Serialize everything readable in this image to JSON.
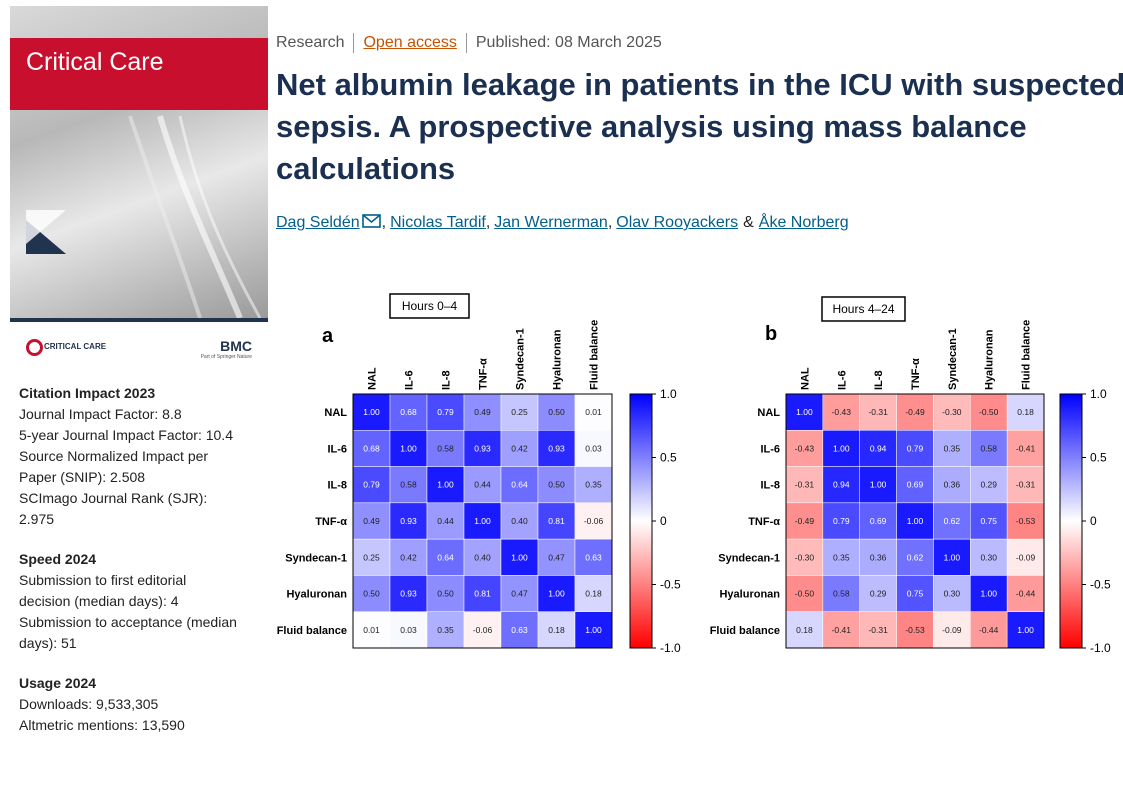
{
  "journal": {
    "name": "Critical Care",
    "logo_text": "CRITICAL CARE",
    "publisher": "BMC",
    "publisher_note": "Part of Springer Nature"
  },
  "metrics": [
    {
      "heading": "Citation Impact 2023",
      "items": [
        "Journal Impact Factor: 8.8",
        "5-year Journal Impact Factor: 10.4",
        "Source Normalized Impact per Paper (SNIP): 2.508",
        "SCImago Journal Rank (SJR): 2.975"
      ]
    },
    {
      "heading": "Speed 2024",
      "items": [
        "Submission to first editorial decision (median days): 4",
        "Submission to acceptance (median days): 51"
      ]
    },
    {
      "heading": "Usage 2024",
      "items": [
        "Downloads: 9,533,305",
        "Altmetric mentions: 13,590"
      ]
    }
  ],
  "article": {
    "type": "Research",
    "access": "Open access",
    "published": "Published: 08 March 2025",
    "title": "Net albumin leakage in patients in the ICU with suspected sepsis. A prospective analysis using mass balance calculations",
    "authors": [
      "Dag Seldén",
      "Nicolas Tardif",
      "Jan Wernerman",
      "Olav Rooyackers",
      "Åke Norberg"
    ],
    "author_separator": ",",
    "last_author_separator": "&"
  },
  "chart_data": [
    {
      "type": "heatmap",
      "panel": "a",
      "title": "Hours 0–4",
      "categories": [
        "NAL",
        "IL-6",
        "IL-8",
        "TNF-α",
        "Syndecan-1",
        "Hyaluronan",
        "Fluid balance"
      ],
      "values": [
        [
          1,
          0.68,
          0.79,
          0.49,
          0.25,
          0.5,
          0.01
        ],
        [
          0.68,
          1,
          0.58,
          0.93,
          0.42,
          0.93,
          0.03
        ],
        [
          0.79,
          0.58,
          1,
          0.44,
          0.64,
          0.5,
          0.35
        ],
        [
          0.49,
          0.93,
          0.44,
          1,
          0.4,
          0.81,
          -0.06
        ],
        [
          0.25,
          0.42,
          0.64,
          0.4,
          1,
          0.47,
          0.63
        ],
        [
          0.5,
          0.93,
          0.5,
          0.81,
          0.47,
          1,
          0.18
        ],
        [
          0.01,
          0.03,
          0.35,
          -0.06,
          0.63,
          0.18,
          1
        ]
      ],
      "value_labels": [
        [
          "1.00",
          "0.68",
          "0.79",
          "0.49",
          "0.25",
          "0.50",
          "0.01"
        ],
        [
          "0.68",
          "1.00",
          "0.58",
          "0.93",
          "0.42",
          "0.93",
          "0.03"
        ],
        [
          "0.79",
          "0.58",
          "1.00",
          "0.44",
          "0.64",
          "0.50",
          "0.35"
        ],
        [
          "0.49",
          "0.93",
          "0.44",
          "1.00",
          "0.40",
          "0.81",
          "-0.06"
        ],
        [
          "0.25",
          "0.42",
          "0.64",
          "0.40",
          "1.00",
          "0.47",
          "0.63"
        ],
        [
          "0.50",
          "0.93",
          "0.50",
          "0.81",
          "0.47",
          "1.00",
          "0.18"
        ],
        [
          "0.01",
          "0.03",
          "0.35",
          "-0.06",
          "0.63",
          "0.18",
          "1.00"
        ]
      ],
      "zlim": [
        -1,
        1
      ],
      "zticks": [
        {
          "value": 1,
          "label": "1.0"
        },
        0.5,
        0,
        -0.5,
        {
          "value": -1,
          "label": "-1.0"
        }
      ],
      "colors": [
        "#ff0000",
        "#ffffff",
        "#0000ff"
      ]
    },
    {
      "type": "heatmap",
      "panel": "b",
      "title": "Hours 4–24",
      "categories": [
        "NAL",
        "IL-6",
        "IL-8",
        "TNF-α",
        "Syndecan-1",
        "Hyaluronan",
        "Fluid balance"
      ],
      "values": [
        [
          1,
          -0.43,
          -0.31,
          -0.49,
          -0.3,
          -0.5,
          0.18
        ],
        [
          -0.43,
          1,
          0.94,
          0.79,
          0.35,
          0.58,
          -0.41
        ],
        [
          -0.31,
          0.94,
          1,
          0.69,
          0.36,
          0.29,
          -0.31
        ],
        [
          -0.49,
          0.79,
          0.69,
          1,
          0.62,
          0.75,
          -0.53
        ],
        [
          -0.3,
          0.35,
          0.36,
          0.62,
          1,
          0.3,
          -0.09
        ],
        [
          -0.5,
          0.58,
          0.29,
          0.75,
          0.3,
          1,
          -0.44
        ],
        [
          0.18,
          -0.41,
          -0.31,
          -0.53,
          -0.09,
          -0.44,
          1
        ]
      ],
      "value_labels": [
        [
          "1.00",
          "-0.43",
          "-0.31",
          "-0.49",
          "-0.30",
          "-0.50",
          "0.18"
        ],
        [
          "-0.43",
          "1.00",
          "0.94",
          "0.79",
          "0.35",
          "0.58",
          "-0.41"
        ],
        [
          "-0.31",
          "0.94",
          "1.00",
          "0.69",
          "0.36",
          "0.29",
          "-0.31"
        ],
        [
          "-0.49",
          "0.79",
          "0.69",
          "1.00",
          "0.62",
          "0.75",
          "-0.53"
        ],
        [
          "-0.30",
          "0.35",
          "0.36",
          "0.62",
          "1.00",
          "0.30",
          "-0.09"
        ],
        [
          "-0.50",
          "0.58",
          "0.29",
          "0.75",
          "0.30",
          "1.00",
          "-0.44"
        ],
        [
          "0.18",
          "-0.41",
          "-0.31",
          "-0.53",
          "-0.09",
          "-0.44",
          "1.00"
        ]
      ],
      "zlim": [
        -1,
        1
      ],
      "zticks": [
        {
          "value": 1,
          "label": "1.0"
        },
        0.5,
        0,
        -0.5,
        {
          "value": -1,
          "label": "-1.0"
        }
      ],
      "colors": [
        "#ff0000",
        "#ffffff",
        "#0000ff"
      ]
    }
  ]
}
